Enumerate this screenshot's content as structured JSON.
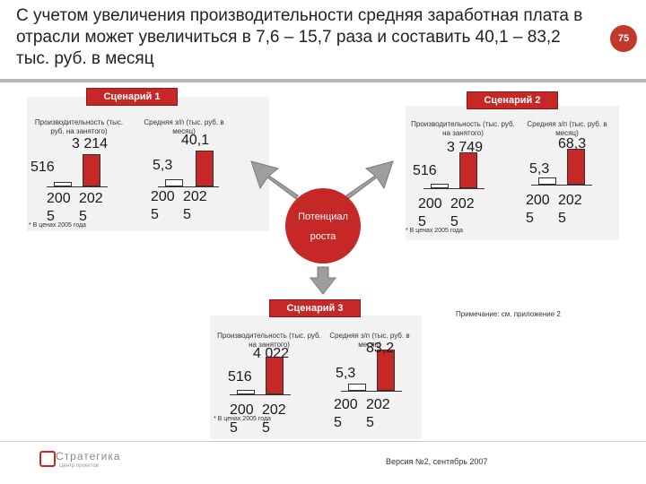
{
  "title": "С учетом увеличения производительности средняя заработная плата в отрасли может увеличиться в 7,6 – 15,7 раза и составить 40,1 – 83,2 тыс. руб. в месяц",
  "page_number": "75",
  "colors": {
    "accent_red": "#c62828",
    "panel_gray": "#f2f2f2",
    "bar_gray": "#ffffff"
  },
  "center_circle": {
    "line1": "Потенциал",
    "line2": "роста"
  },
  "note": "Примечание: см. приложение 2",
  "footer": {
    "version": "Версия №2, сентябрь 2007",
    "logo_text": "Стратегика",
    "logo_sub": "Центр проектов"
  },
  "scenarios": [
    {
      "label": "Сценарий 1",
      "footnote": "* В ценах 2005 года",
      "productivity": {
        "header": "Производительность (тыс. руб. на занятого)",
        "values": [
          "516",
          "3 214"
        ],
        "years": [
          "2005",
          "2025"
        ]
      },
      "salary": {
        "header": "Средняя з/п (тыс. руб. в месяц)",
        "values": [
          "5,3",
          "40,1"
        ],
        "years": [
          "2005",
          "2025"
        ]
      }
    },
    {
      "label": "Сценарий 2",
      "footnote": "* В ценах 2005 года",
      "productivity": {
        "header": "Производительность (тыс. руб. на занятого)",
        "values": [
          "516",
          "3 749"
        ],
        "years": [
          "2005",
          "2025"
        ]
      },
      "salary": {
        "header": "Средняя з/п (тыс. руб. в месяц)",
        "values": [
          "5,3",
          "68,3"
        ],
        "years": [
          "2005",
          "2025"
        ]
      }
    },
    {
      "label": "Сценарий 3",
      "footnote": "* В ценах 2005 года",
      "productivity": {
        "header": "Производительность (тыс. руб. на занятого)",
        "values": [
          "516",
          "4 022"
        ],
        "years": [
          "2005",
          "2025"
        ]
      },
      "salary": {
        "header": "Средняя з/п (тыс. руб. в месяц)",
        "values": [
          "5,3",
          "83,2"
        ],
        "years": [
          "2005",
          "2025"
        ]
      }
    }
  ]
}
